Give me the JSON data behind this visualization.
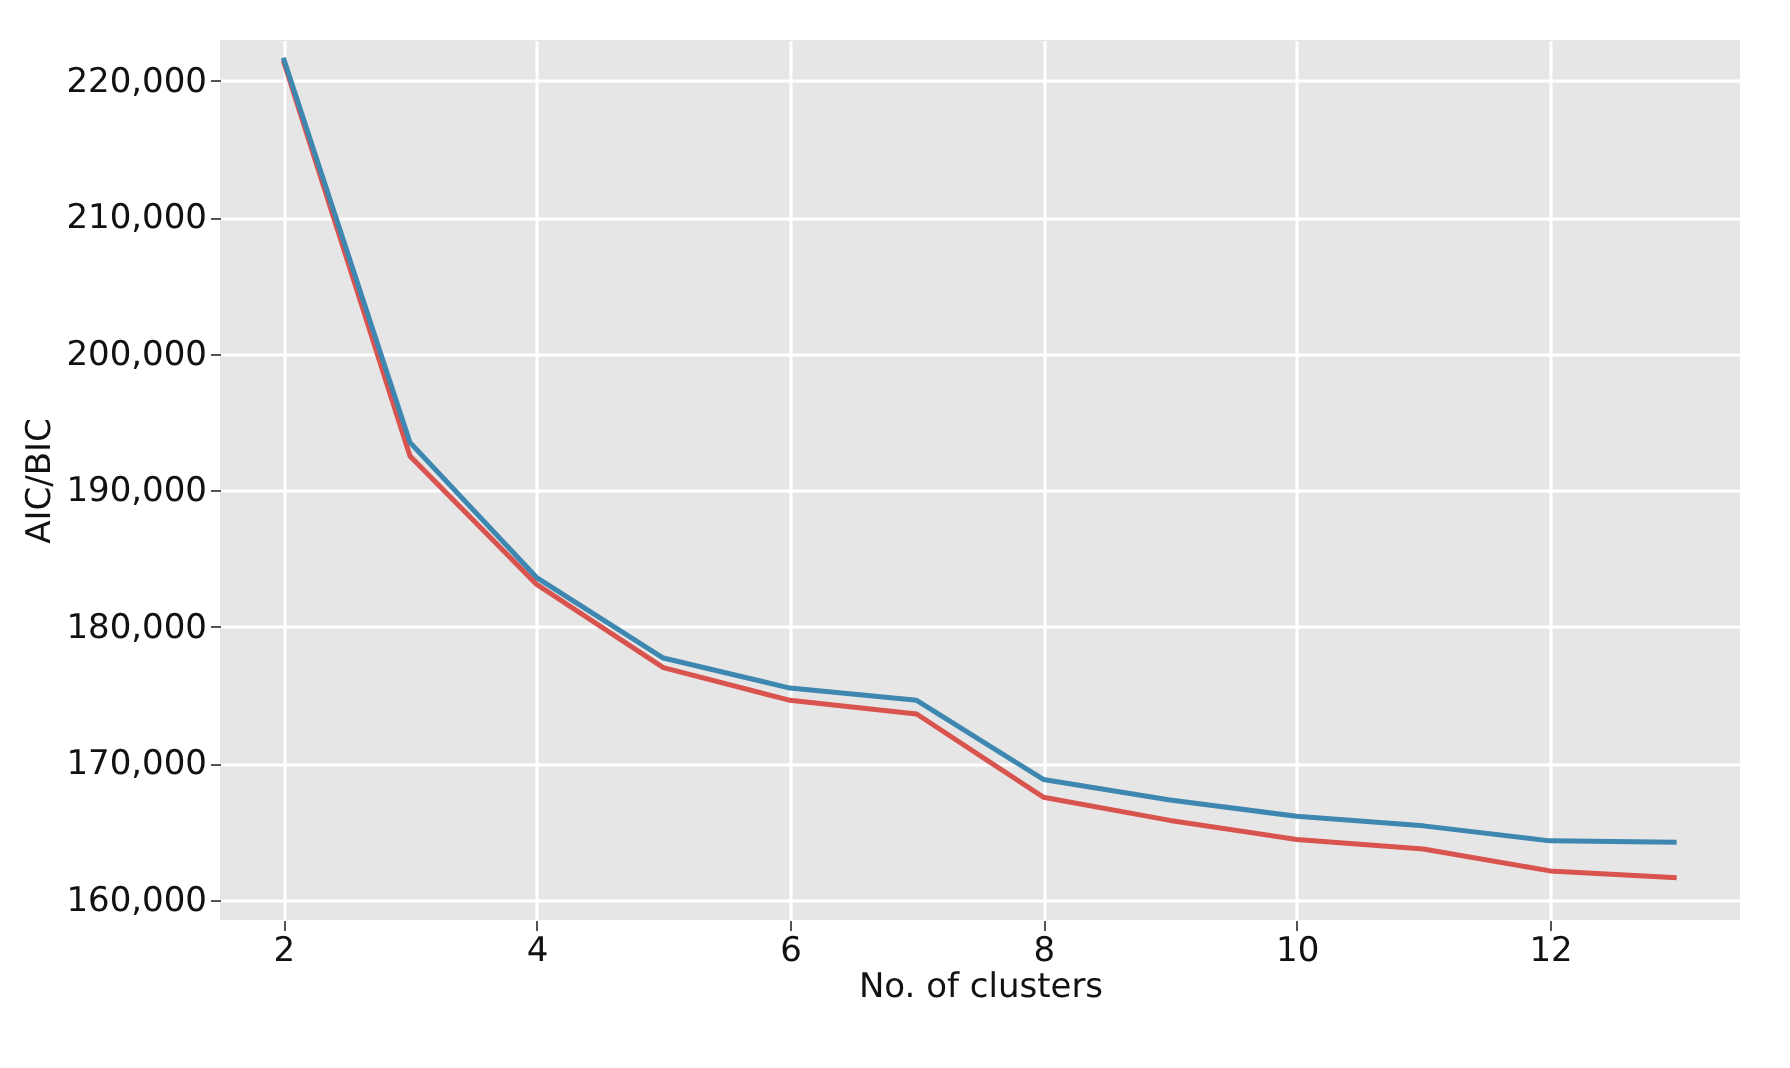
{
  "chart_data": {
    "type": "line",
    "xlabel": "No. of clusters",
    "ylabel": "AIC/BIC",
    "x": [
      2,
      3,
      4,
      5,
      6,
      7,
      8,
      9,
      10,
      11,
      12,
      13
    ],
    "series": [
      {
        "color": "#d9534f",
        "values": [
          221500,
          192500,
          183100,
          177000,
          174600,
          173600,
          167500,
          165800,
          164400,
          163700,
          162100,
          161600
        ]
      },
      {
        "color": "#3d87b0",
        "values": [
          221700,
          193500,
          183600,
          177700,
          175500,
          174600,
          168800,
          167300,
          166100,
          165400,
          164300,
          164200
        ]
      }
    ],
    "xlim": [
      1.5,
      13.5
    ],
    "xticks": [
      2,
      4,
      6,
      8,
      10,
      12
    ],
    "ylim": [
      158500,
      223000
    ],
    "yticks": [
      {
        "value": 160000,
        "label": "160,000"
      },
      {
        "value": 170000,
        "label": "170,000"
      },
      {
        "value": 180000,
        "label": "180,000"
      },
      {
        "value": 190000,
        "label": "190,000"
      },
      {
        "value": 200000,
        "label": "200,000"
      },
      {
        "value": 210000,
        "label": "210,000"
      },
      {
        "value": 220000,
        "label": "220,000"
      }
    ],
    "grid": true,
    "legend": false,
    "marker": "none",
    "line_style": "solid"
  }
}
